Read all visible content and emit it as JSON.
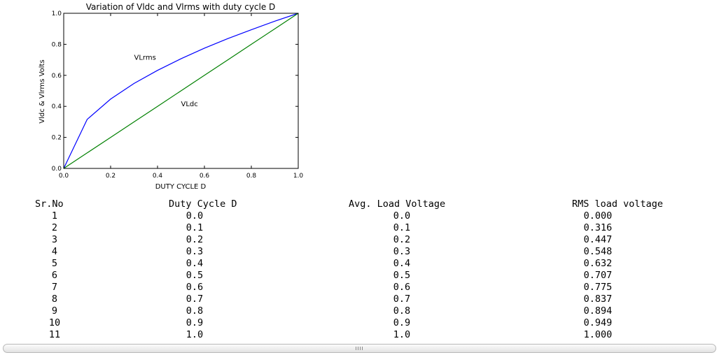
{
  "chart_data": {
    "type": "line",
    "title": "Variation of Vldc and Vlrms with duty cycle D",
    "xlabel": "DUTY CYCLE D",
    "ylabel": "Vldc & Vlrms Volts",
    "xlim": [
      0.0,
      1.0
    ],
    "ylim": [
      0.0,
      1.0
    ],
    "x_ticks": [
      "0.0",
      "0.2",
      "0.4",
      "0.6",
      "0.8",
      "1.0"
    ],
    "y_ticks": [
      "0.0",
      "0.2",
      "0.4",
      "0.6",
      "0.8",
      "1.0"
    ],
    "grid": false,
    "x": [
      0.0,
      0.1,
      0.2,
      0.3,
      0.4,
      0.5,
      0.6,
      0.7,
      0.8,
      0.9,
      1.0
    ],
    "series": [
      {
        "values": [
          0.0,
          0.316,
          0.447,
          0.548,
          0.632,
          0.707,
          0.775,
          0.837,
          0.894,
          0.949,
          1.0
        ],
        "color": "#0000ff"
      },
      {
        "values": [
          0.0,
          0.1,
          0.2,
          0.3,
          0.4,
          0.5,
          0.6,
          0.7,
          0.8,
          0.9,
          1.0
        ],
        "color": "#008000"
      }
    ],
    "annotations": [
      {
        "text": "VLrms",
        "x": 0.3,
        "y": 0.7
      },
      {
        "text": "VLdc",
        "x": 0.5,
        "y": 0.4
      }
    ]
  },
  "table": {
    "headers": [
      "Sr.No",
      "Duty Cycle D",
      "Avg. Load Voltage",
      "RMS load voltage"
    ],
    "rows": [
      [
        "1",
        "0.0",
        "0.0",
        "0.000"
      ],
      [
        "2",
        "0.1",
        "0.1",
        "0.316"
      ],
      [
        "3",
        "0.2",
        "0.2",
        "0.447"
      ],
      [
        "4",
        "0.3",
        "0.3",
        "0.548"
      ],
      [
        "5",
        "0.4",
        "0.4",
        "0.632"
      ],
      [
        "6",
        "0.5",
        "0.5",
        "0.707"
      ],
      [
        "7",
        "0.6",
        "0.6",
        "0.775"
      ],
      [
        "8",
        "0.7",
        "0.7",
        "0.837"
      ],
      [
        "9",
        "0.8",
        "0.8",
        "0.894"
      ],
      [
        "10",
        "0.9",
        "0.9",
        "0.949"
      ],
      [
        "11",
        "1.0",
        "1.0",
        "1.000"
      ]
    ]
  },
  "scrollbar": {
    "grip_icon": "grip-icon"
  }
}
